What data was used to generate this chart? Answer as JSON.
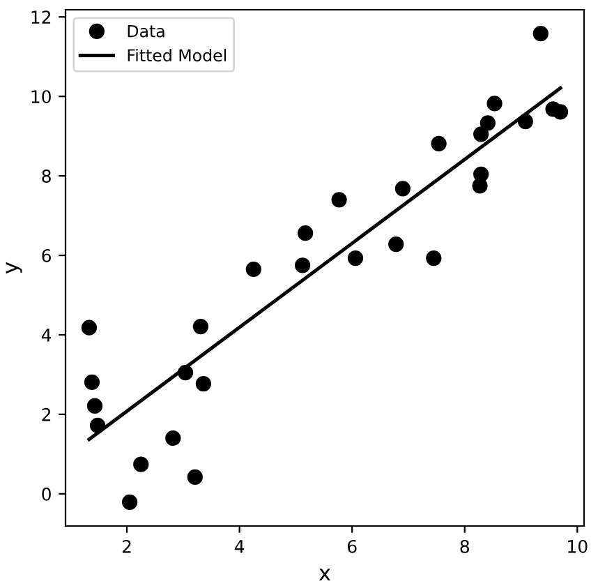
{
  "chart_data": {
    "type": "scatter",
    "xlabel": "x",
    "ylabel": "y",
    "xlim": [
      0.91,
      10.12
    ],
    "ylim": [
      -0.81,
      12.18
    ],
    "xticks": [
      2,
      4,
      6,
      8,
      10
    ],
    "yticks": [
      0,
      2,
      4,
      6,
      8,
      10,
      12
    ],
    "grid": false,
    "legend": "top left",
    "series": [
      {
        "name": "Data",
        "marker": "circle",
        "color": "#000000",
        "x": [
          1.33,
          1.38,
          1.43,
          1.48,
          2.05,
          2.25,
          2.82,
          3.04,
          3.21,
          3.31,
          3.36,
          4.25,
          5.12,
          5.17,
          5.77,
          6.06,
          6.78,
          6.9,
          7.45,
          7.54,
          8.27,
          8.29,
          8.29,
          8.41,
          8.53,
          9.08,
          9.35,
          9.57,
          9.7
        ],
        "values": [
          4.18,
          2.81,
          2.21,
          1.72,
          -0.21,
          0.74,
          1.4,
          3.05,
          0.42,
          4.21,
          2.77,
          5.65,
          5.75,
          6.56,
          7.4,
          5.93,
          6.28,
          7.68,
          5.93,
          8.81,
          7.75,
          8.04,
          9.05,
          9.33,
          9.82,
          9.37,
          11.58,
          9.68,
          9.61
        ]
      },
      {
        "name": "Fitted Model",
        "type": "line",
        "line_style": "solid",
        "color": "#000000",
        "x": [
          1.33,
          9.7
        ],
        "values": [
          1.37,
          10.21
        ]
      }
    ]
  }
}
